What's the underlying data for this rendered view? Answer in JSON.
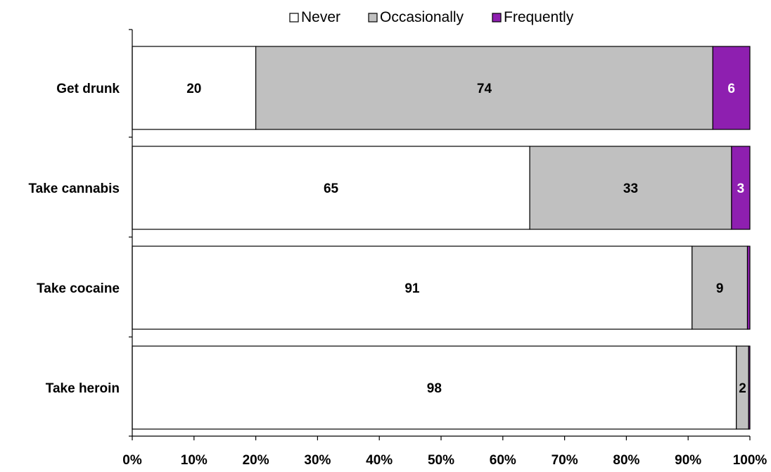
{
  "chart_data": {
    "type": "bar",
    "orientation": "horizontal",
    "stacked": "100%",
    "categories": [
      "Get drunk",
      "Take cannabis",
      "Take cocaine",
      "Take heroin"
    ],
    "series": [
      {
        "name": "Never",
        "values": [
          20,
          65,
          91,
          98
        ],
        "color": "#ffffff",
        "label_color": "#000000"
      },
      {
        "name": "Occasionally",
        "values": [
          74,
          33,
          9,
          2
        ],
        "color": "#c0c0c0",
        "label_color": "#000000"
      },
      {
        "name": "Frequently",
        "values": [
          6,
          3,
          0.4,
          0.2
        ],
        "color": "#8e1fb0",
        "label_color": "#ffffff",
        "labels": [
          "6",
          "3",
          "",
          ""
        ]
      }
    ],
    "xlim": [
      0,
      100
    ],
    "x_ticks": [
      "0%",
      "10%",
      "20%",
      "30%",
      "40%",
      "50%",
      "60%",
      "70%",
      "80%",
      "90%",
      "100%"
    ],
    "legend": {
      "position": "top",
      "items": [
        "Never",
        "Occasionally",
        "Frequently"
      ]
    },
    "grid": false
  }
}
